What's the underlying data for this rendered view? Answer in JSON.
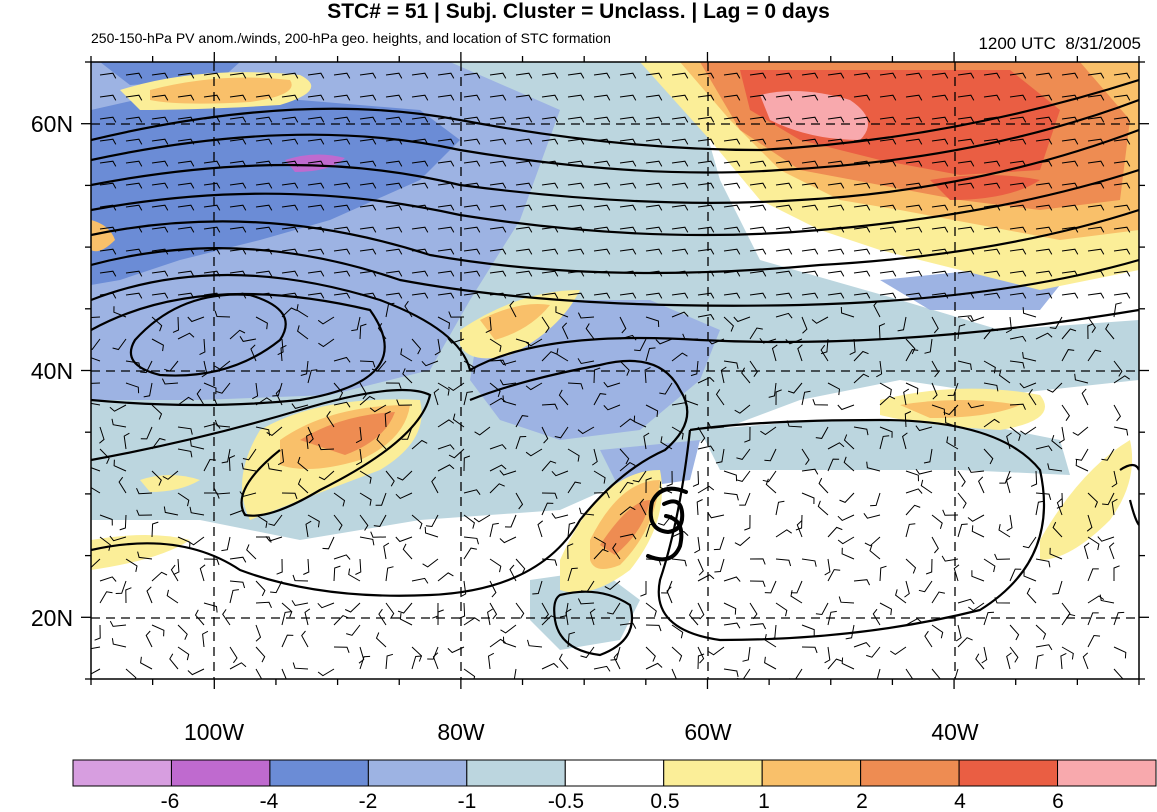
{
  "header": {
    "title": "STC# = 51 | Subj. Cluster = Unclass. | Lag = 0 days",
    "subtitle": "250-150-hPa PV anom./winds, 200-hPa geo. heights, and location of STC formation",
    "datetime": "1200 UTC  8/31/2005"
  },
  "map": {
    "lat_labels": [
      "60N",
      "40N",
      "20N"
    ],
    "lon_labels": [
      "100W",
      "80W",
      "60W",
      "40W"
    ],
    "lat_range": [
      15,
      65
    ],
    "lon_range": [
      -110,
      -25
    ],
    "storm_symbol": "tropical-cyclone-icon",
    "storm_location": {
      "lat": 27.5,
      "lon": -62.5
    }
  },
  "colorbar": {
    "colors": [
      "#d79ee0",
      "#bf6acf",
      "#6b8cd6",
      "#9db3e3",
      "#bcd6df",
      "#ffffff",
      "#fbee98",
      "#f9c06a",
      "#ee8c52",
      "#ea5e43",
      "#f8a9ad"
    ],
    "labels": [
      "-6",
      "-4",
      "-2",
      "-1",
      "-0.5",
      "0.5",
      "1",
      "2",
      "4",
      "6"
    ]
  }
}
